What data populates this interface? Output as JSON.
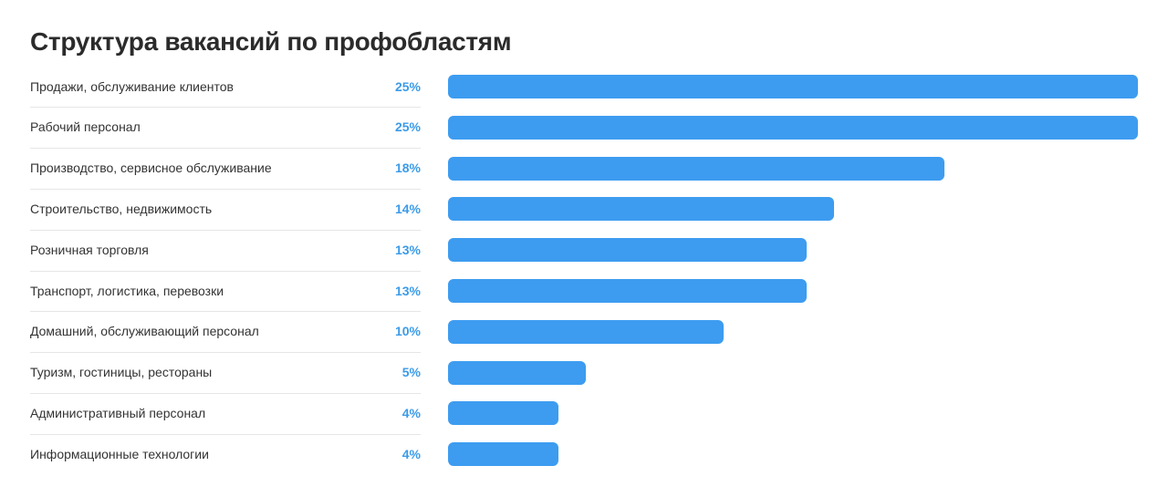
{
  "chart_data": {
    "type": "bar",
    "orientation": "horizontal",
    "title": "Структура вакансий по профобластям",
    "categories": [
      "Продажи, обслуживание клиентов",
      "Рабочий персонал",
      "Производство, сервисное обслуживание",
      "Строительство, недвижимость",
      "Розничная торговля",
      "Транспорт, логистика, перевозки",
      "Домашний, обслуживающий персонал",
      "Туризм, гостиницы, рестораны",
      "Административный персонал",
      "Информационные технологии"
    ],
    "values": [
      25,
      25,
      18,
      14,
      13,
      13,
      10,
      5,
      4,
      4
    ],
    "value_labels": [
      "25%",
      "25%",
      "18%",
      "14%",
      "13%",
      "13%",
      "10%",
      "5%",
      "4%",
      "4%"
    ],
    "xlim": [
      0,
      25
    ],
    "unit": "%",
    "grid": false,
    "legend": "none"
  },
  "colors": {
    "bar": "#3d9cf0",
    "value_label": "#3b9be8",
    "title": "#2b2b2b",
    "label": "#333333",
    "separator": "#e6e6e6"
  }
}
